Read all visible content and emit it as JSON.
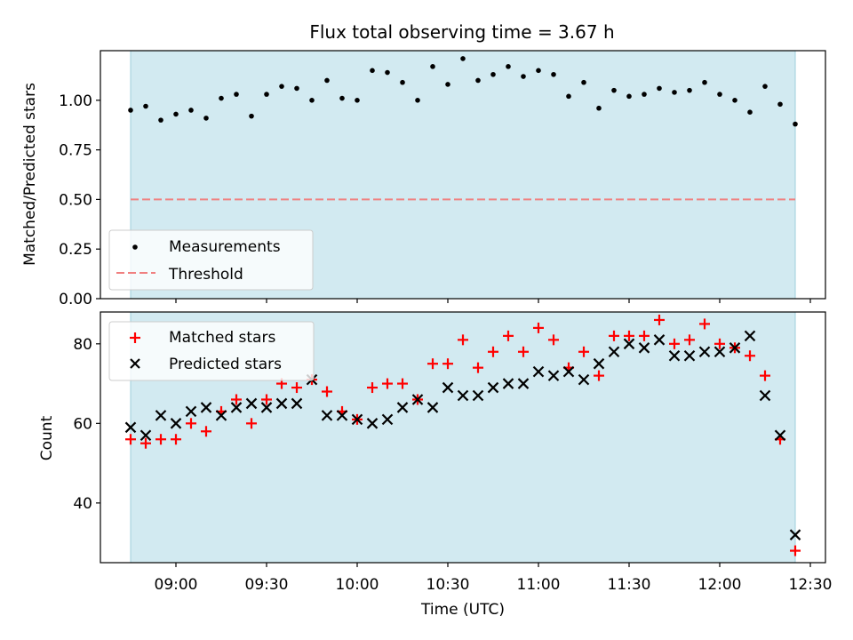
{
  "chart_data": [
    {
      "type": "scatter",
      "title": "Flux total observing time = 3.67 h",
      "xlabel": "",
      "ylabel": "Matched/Predicted stars",
      "ylim": [
        0,
        1.25
      ],
      "yticks": [
        "0.00",
        "0.25",
        "0.50",
        "0.75",
        "1.00"
      ],
      "xlim": [
        "08:35",
        "12:35"
      ],
      "observing_window": [
        "08:45",
        "12:25"
      ],
      "grid": false,
      "legend_placement": "lower-left",
      "colors": {
        "measurements": "#000000",
        "threshold": "#f08080",
        "window": "#add8e6"
      },
      "series": [
        {
          "name": "Measurements",
          "x": [
            "08:45",
            "08:50",
            "08:55",
            "09:00",
            "09:05",
            "09:10",
            "09:15",
            "09:20",
            "09:25",
            "09:30",
            "09:35",
            "09:40",
            "09:45",
            "09:50",
            "09:55",
            "10:00",
            "10:05",
            "10:10",
            "10:15",
            "10:20",
            "10:25",
            "10:30",
            "10:35",
            "10:40",
            "10:45",
            "10:50",
            "10:55",
            "11:00",
            "11:05",
            "11:10",
            "11:15",
            "11:20",
            "11:25",
            "11:30",
            "11:35",
            "11:40",
            "11:45",
            "11:50",
            "11:55",
            "12:00",
            "12:05",
            "12:10",
            "12:15",
            "12:20",
            "12:25"
          ],
          "y": [
            0.95,
            0.97,
            0.9,
            0.93,
            0.95,
            0.91,
            1.01,
            1.03,
            0.92,
            1.03,
            1.07,
            1.06,
            1.0,
            1.1,
            1.01,
            1.0,
            1.15,
            1.14,
            1.09,
            1.0,
            1.17,
            1.08,
            1.21,
            1.1,
            1.13,
            1.17,
            1.12,
            1.15,
            1.13,
            1.02,
            1.09,
            0.96,
            1.05,
            1.02,
            1.03,
            1.06,
            1.04,
            1.05,
            1.09,
            1.03,
            1.0,
            0.94,
            1.07,
            0.98,
            0.88
          ]
        },
        {
          "name": "Threshold",
          "style": "dashed-line",
          "x": [
            "08:45",
            "12:25"
          ],
          "y": [
            0.5,
            0.5
          ]
        }
      ]
    },
    {
      "type": "scatter",
      "title": "",
      "xlabel": "Time (UTC)",
      "ylabel": "Count",
      "ylim": [
        25,
        88
      ],
      "yticks": [
        "40",
        "60",
        "80"
      ],
      "xlim": [
        "08:35",
        "12:35"
      ],
      "xticks": [
        "09:00",
        "09:30",
        "10:00",
        "10:30",
        "11:00",
        "11:30",
        "12:00",
        "12:30"
      ],
      "observing_window": [
        "08:45",
        "12:25"
      ],
      "grid": false,
      "legend_placement": "upper-left",
      "colors": {
        "matched": "#ff0000",
        "predicted": "#000000",
        "window": "#add8e6"
      },
      "series": [
        {
          "name": "Matched stars",
          "marker": "plus",
          "x": [
            "08:45",
            "08:50",
            "08:55",
            "09:00",
            "09:05",
            "09:10",
            "09:15",
            "09:20",
            "09:25",
            "09:30",
            "09:35",
            "09:40",
            "09:45",
            "09:50",
            "09:55",
            "10:00",
            "10:05",
            "10:10",
            "10:15",
            "10:20",
            "10:25",
            "10:30",
            "10:35",
            "10:40",
            "10:45",
            "10:50",
            "10:55",
            "11:00",
            "11:05",
            "11:10",
            "11:15",
            "11:20",
            "11:25",
            "11:30",
            "11:35",
            "11:40",
            "11:45",
            "11:50",
            "11:55",
            "12:00",
            "12:05",
            "12:10",
            "12:15",
            "12:20",
            "12:25"
          ],
          "y": [
            56,
            55,
            56,
            56,
            60,
            58,
            63,
            66,
            60,
            66,
            70,
            69,
            71,
            68,
            63,
            61,
            69,
            70,
            70,
            66,
            75,
            75,
            81,
            74,
            78,
            82,
            78,
            84,
            81,
            74,
            78,
            72,
            82,
            82,
            82,
            86,
            80,
            81,
            85,
            80,
            79,
            77,
            72,
            56,
            28
          ]
        },
        {
          "name": "Predicted stars",
          "marker": "x",
          "x": [
            "08:45",
            "08:50",
            "08:55",
            "09:00",
            "09:05",
            "09:10",
            "09:15",
            "09:20",
            "09:25",
            "09:30",
            "09:35",
            "09:40",
            "09:45",
            "09:50",
            "09:55",
            "10:00",
            "10:05",
            "10:10",
            "10:15",
            "10:20",
            "10:25",
            "10:30",
            "10:35",
            "10:40",
            "10:45",
            "10:50",
            "10:55",
            "11:00",
            "11:05",
            "11:10",
            "11:15",
            "11:20",
            "11:25",
            "11:30",
            "11:35",
            "11:40",
            "11:45",
            "11:50",
            "11:55",
            "12:00",
            "12:05",
            "12:10",
            "12:15",
            "12:20",
            "12:25"
          ],
          "y": [
            59,
            57,
            62,
            60,
            63,
            64,
            62,
            64,
            65,
            64,
            65,
            65,
            71,
            62,
            62,
            61,
            60,
            61,
            64,
            66,
            64,
            69,
            67,
            67,
            69,
            70,
            70,
            73,
            72,
            73,
            71,
            75,
            78,
            80,
            79,
            81,
            77,
            77,
            78,
            78,
            79,
            82,
            67,
            57,
            32
          ]
        }
      ]
    }
  ]
}
